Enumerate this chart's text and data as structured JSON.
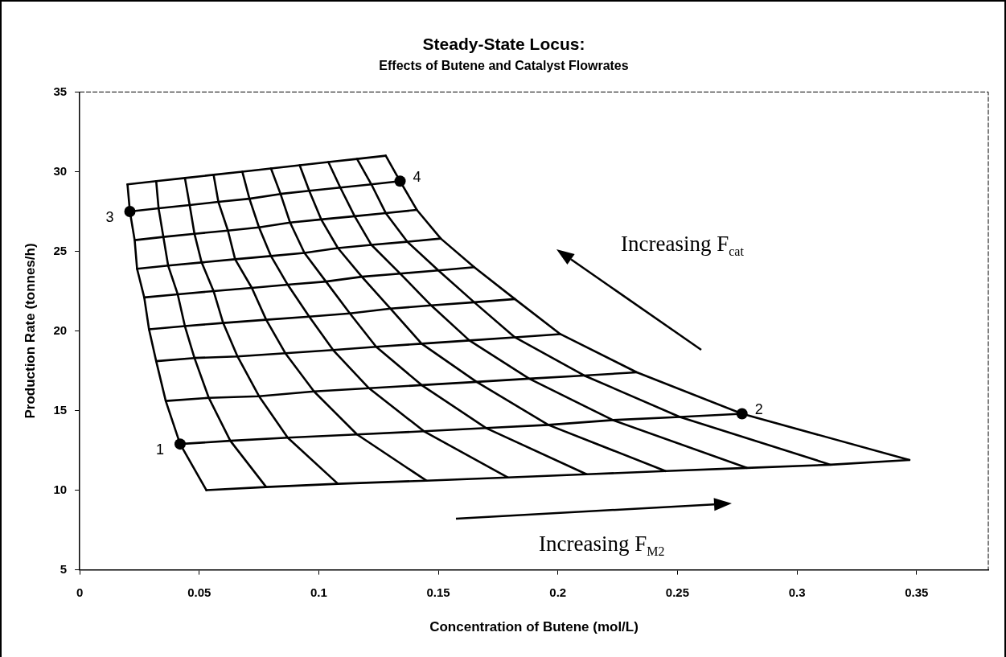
{
  "chart_data": {
    "type": "line",
    "title": "Steady-State Locus:",
    "subtitle": "Effects of Butene and Catalyst Flowrates",
    "xlabel": "Concentration of Butene (mol/L)",
    "ylabel": "Production Rate (tonnes/h)",
    "xlim": [
      0,
      0.38
    ],
    "xticks": [
      0,
      0.05,
      0.1,
      0.15,
      0.2,
      0.25,
      0.3,
      0.35
    ],
    "ylim": [
      5,
      35
    ],
    "yticks": [
      5,
      10,
      15,
      20,
      25,
      30,
      35
    ],
    "grid": false,
    "legend": false,
    "marker": "none",
    "line_style": "solid",
    "series": [
      {
        "color": "#000000",
        "x": [
          0.02,
          0.032,
          0.044,
          0.056,
          0.068,
          0.08,
          0.092,
          0.104,
          0.116,
          0.128
        ],
        "values": [
          29.2,
          29.4,
          29.6,
          29.8,
          30.0,
          30.2,
          30.4,
          30.6,
          30.8,
          31.0
        ]
      },
      {
        "color": "#000000",
        "x": [
          0.021,
          0.033,
          0.046,
          0.058,
          0.071,
          0.084,
          0.096,
          0.109,
          0.122,
          0.134
        ],
        "values": [
          27.5,
          27.7,
          27.9,
          28.1,
          28.3,
          28.6,
          28.8,
          29.0,
          29.2,
          29.4
        ]
      },
      {
        "color": "#000000",
        "x": [
          0.023,
          0.035,
          0.048,
          0.062,
          0.075,
          0.088,
          0.101,
          0.115,
          0.128,
          0.141
        ],
        "values": [
          25.7,
          25.9,
          26.1,
          26.3,
          26.5,
          26.8,
          27.0,
          27.2,
          27.4,
          27.6
        ]
      },
      {
        "color": "#000000",
        "x": [
          0.024,
          0.037,
          0.051,
          0.065,
          0.08,
          0.094,
          0.108,
          0.122,
          0.137,
          0.151
        ],
        "values": [
          23.9,
          24.1,
          24.3,
          24.5,
          24.7,
          24.9,
          25.2,
          25.4,
          25.6,
          25.8
        ]
      },
      {
        "color": "#000000",
        "x": [
          0.027,
          0.041,
          0.056,
          0.072,
          0.087,
          0.103,
          0.118,
          0.134,
          0.15,
          0.165
        ],
        "values": [
          22.1,
          22.3,
          22.5,
          22.7,
          22.9,
          23.1,
          23.4,
          23.6,
          23.8,
          24.0
        ]
      },
      {
        "color": "#000000",
        "x": [
          0.029,
          0.044,
          0.06,
          0.078,
          0.096,
          0.113,
          0.13,
          0.147,
          0.165,
          0.182
        ],
        "values": [
          20.1,
          20.3,
          20.5,
          20.7,
          20.9,
          21.1,
          21.4,
          21.6,
          21.8,
          22.0
        ]
      },
      {
        "color": "#000000",
        "x": [
          0.032,
          0.048,
          0.066,
          0.086,
          0.106,
          0.124,
          0.143,
          0.163,
          0.182,
          0.201
        ],
        "values": [
          18.1,
          18.3,
          18.4,
          18.6,
          18.8,
          19.0,
          19.2,
          19.4,
          19.6,
          19.8
        ]
      },
      {
        "color": "#000000",
        "x": [
          0.036,
          0.054,
          0.075,
          0.098,
          0.121,
          0.143,
          0.166,
          0.188,
          0.211,
          0.233
        ],
        "values": [
          15.6,
          15.8,
          15.9,
          16.2,
          16.4,
          16.6,
          16.8,
          17.0,
          17.2,
          17.4
        ]
      },
      {
        "color": "#000000",
        "x": [
          0.042,
          0.063,
          0.087,
          0.116,
          0.144,
          0.17,
          0.196,
          0.223,
          0.251,
          0.277
        ],
        "values": [
          12.9,
          13.1,
          13.3,
          13.5,
          13.7,
          13.9,
          14.1,
          14.4,
          14.6,
          14.8
        ]
      },
      {
        "color": "#000000",
        "x": [
          0.053,
          0.078,
          0.108,
          0.145,
          0.179,
          0.212,
          0.245,
          0.279,
          0.314,
          0.347
        ],
        "values": [
          10.0,
          10.2,
          10.4,
          10.6,
          10.8,
          11.0,
          11.2,
          11.4,
          11.6,
          11.9
        ]
      },
      {
        "color": "#000000",
        "x": [
          0.02,
          0.021,
          0.023,
          0.024,
          0.027,
          0.029,
          0.032,
          0.036,
          0.042,
          0.053
        ],
        "values": [
          29.2,
          27.5,
          25.7,
          23.9,
          22.1,
          20.1,
          18.1,
          15.6,
          12.9,
          10.0
        ]
      },
      {
        "color": "#000000",
        "x": [
          0.032,
          0.033,
          0.035,
          0.037,
          0.041,
          0.044,
          0.048,
          0.054,
          0.063,
          0.078
        ],
        "values": [
          29.4,
          27.7,
          25.9,
          24.1,
          22.3,
          20.3,
          18.3,
          15.8,
          13.1,
          10.2
        ]
      },
      {
        "color": "#000000",
        "x": [
          0.044,
          0.046,
          0.048,
          0.051,
          0.056,
          0.06,
          0.066,
          0.075,
          0.087,
          0.108
        ],
        "values": [
          29.6,
          27.9,
          26.1,
          24.3,
          22.5,
          20.5,
          18.4,
          15.9,
          13.3,
          10.4
        ]
      },
      {
        "color": "#000000",
        "x": [
          0.056,
          0.058,
          0.062,
          0.065,
          0.072,
          0.078,
          0.086,
          0.098,
          0.116,
          0.145
        ],
        "values": [
          29.8,
          28.1,
          26.3,
          24.5,
          22.7,
          20.7,
          18.6,
          16.2,
          13.5,
          10.6
        ]
      },
      {
        "color": "#000000",
        "x": [
          0.068,
          0.071,
          0.075,
          0.08,
          0.087,
          0.096,
          0.106,
          0.121,
          0.144,
          0.179
        ],
        "values": [
          30.0,
          28.3,
          26.5,
          24.7,
          22.9,
          20.9,
          18.8,
          16.4,
          13.7,
          10.8
        ]
      },
      {
        "color": "#000000",
        "x": [
          0.08,
          0.084,
          0.088,
          0.094,
          0.103,
          0.113,
          0.124,
          0.143,
          0.17,
          0.212
        ],
        "values": [
          30.2,
          28.6,
          26.8,
          24.9,
          23.1,
          21.1,
          19.0,
          16.6,
          13.9,
          11.0
        ]
      },
      {
        "color": "#000000",
        "x": [
          0.092,
          0.096,
          0.101,
          0.108,
          0.118,
          0.13,
          0.143,
          0.166,
          0.196,
          0.245
        ],
        "values": [
          30.4,
          28.8,
          27.0,
          25.2,
          23.4,
          21.4,
          19.2,
          16.8,
          14.1,
          11.2
        ]
      },
      {
        "color": "#000000",
        "x": [
          0.104,
          0.109,
          0.115,
          0.122,
          0.134,
          0.147,
          0.163,
          0.188,
          0.223,
          0.279
        ],
        "values": [
          30.6,
          29.0,
          27.2,
          25.4,
          23.6,
          21.6,
          19.4,
          17.0,
          14.4,
          11.4
        ]
      },
      {
        "color": "#000000",
        "x": [
          0.116,
          0.122,
          0.128,
          0.137,
          0.15,
          0.165,
          0.182,
          0.211,
          0.251,
          0.314
        ],
        "values": [
          30.8,
          29.2,
          27.4,
          25.6,
          23.8,
          21.8,
          19.6,
          17.2,
          14.6,
          11.6
        ]
      },
      {
        "color": "#000000",
        "x": [
          0.128,
          0.134,
          0.141,
          0.151,
          0.165,
          0.182,
          0.201,
          0.233,
          0.277,
          0.347
        ],
        "values": [
          31.0,
          29.4,
          27.6,
          25.8,
          24.0,
          22.0,
          19.8,
          17.4,
          14.8,
          11.9
        ]
      },
      {
        "type": "scatter",
        "marker": "circle",
        "color": "#000000",
        "x": [
          0.042,
          0.277,
          0.021,
          0.134
        ],
        "values": [
          12.9,
          14.8,
          27.5,
          29.4
        ]
      }
    ],
    "annotations": [
      {
        "text": "1",
        "x": 0.042,
        "y": 12.9
      },
      {
        "text": "2",
        "x": 0.277,
        "y": 14.8
      },
      {
        "text": "3",
        "x": 0.021,
        "y": 27.5
      },
      {
        "text": "4",
        "x": 0.134,
        "y": 29.4
      },
      "Increasing F$_{cat}$",
      "Increasing F$_{M2}$"
    ]
  }
}
